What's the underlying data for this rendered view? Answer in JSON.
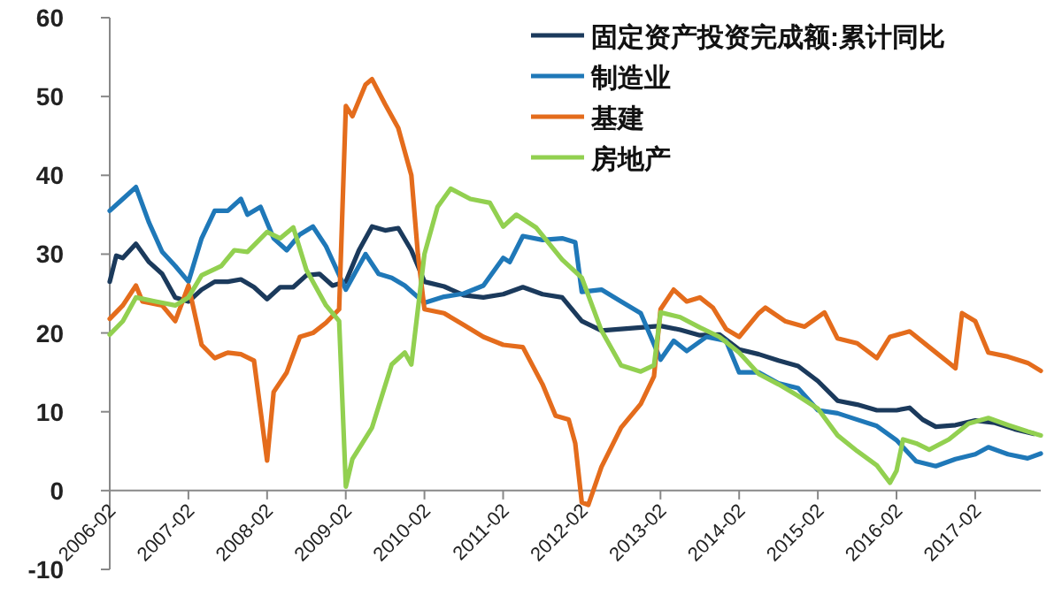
{
  "chart_data": {
    "type": "line",
    "ylim": [
      -10,
      60
    ],
    "yticks": [
      -10,
      0,
      10,
      20,
      30,
      40,
      50,
      60
    ],
    "xlim": [
      "2006-02",
      "2017-12"
    ],
    "xticks": [
      "2006-02",
      "2007-02",
      "2008-02",
      "2009-02",
      "2010-02",
      "2011-02",
      "2012-02",
      "2013-02",
      "2014-02",
      "2015-02",
      "2016-02",
      "2017-02"
    ],
    "grid": false,
    "legend": "top right",
    "marker": "none",
    "line_style": "solid",
    "series": [
      {
        "name": "固定资产投资完成额:累计同比",
        "color": "#1b3a5c",
        "x": [
          "2006-02",
          "2006-03",
          "2006-04",
          "2006-06",
          "2006-08",
          "2006-10",
          "2006-12",
          "2007-02",
          "2007-04",
          "2007-06",
          "2007-08",
          "2007-10",
          "2007-12",
          "2008-02",
          "2008-04",
          "2008-06",
          "2008-08",
          "2008-10",
          "2008-12",
          "2009-02",
          "2009-04",
          "2009-06",
          "2009-08",
          "2009-10",
          "2009-12",
          "2010-02",
          "2010-05",
          "2010-08",
          "2010-11",
          "2011-02",
          "2011-05",
          "2011-08",
          "2011-11",
          "2012-02",
          "2012-05",
          "2012-08",
          "2012-11",
          "2013-02",
          "2013-05",
          "2013-08",
          "2013-11",
          "2014-02",
          "2014-05",
          "2014-08",
          "2014-11",
          "2015-02",
          "2015-05",
          "2015-08",
          "2015-11",
          "2016-02",
          "2016-04",
          "2016-06",
          "2016-08",
          "2016-11",
          "2017-02",
          "2017-05",
          "2017-08",
          "2017-11"
        ],
        "values": [
          26.5,
          29.8,
          29.5,
          31.3,
          29,
          27.5,
          24.5,
          24,
          25.5,
          26.5,
          26.5,
          26.8,
          25.8,
          24.3,
          25.8,
          25.8,
          27.3,
          27.5,
          26,
          26.5,
          30.5,
          33.5,
          33,
          33.3,
          30.5,
          26.5,
          25.9,
          24.8,
          24.5,
          24.9,
          25.8,
          24.9,
          24.5,
          21.5,
          20.3,
          20.5,
          20.7,
          20.9,
          20.4,
          19.7,
          19.8,
          17.9,
          17.3,
          16.5,
          15.8,
          13.9,
          11.4,
          10.9,
          10.2,
          10.2,
          10.5,
          9,
          8.1,
          8.3,
          8.9,
          8.6,
          7.8,
          7.2
        ]
      },
      {
        "name": "制造业",
        "color": "#1f78b8",
        "x": [
          "2006-02",
          "2006-04",
          "2006-06",
          "2006-08",
          "2006-10",
          "2006-12",
          "2007-02",
          "2007-04",
          "2007-06",
          "2007-08",
          "2007-10",
          "2007-11",
          "2008-01",
          "2008-03",
          "2008-05",
          "2008-07",
          "2008-09",
          "2008-11",
          "2009-02",
          "2009-04",
          "2009-05",
          "2009-07",
          "2009-09",
          "2009-11",
          "2010-02",
          "2010-05",
          "2010-08",
          "2010-11",
          "2011-02",
          "2011-03",
          "2011-05",
          "2011-08",
          "2011-11",
          "2012-01",
          "2012-02",
          "2012-05",
          "2012-08",
          "2012-11",
          "2013-02",
          "2013-04",
          "2013-06",
          "2013-09",
          "2013-12",
          "2014-02",
          "2014-05",
          "2014-08",
          "2014-11",
          "2015-02",
          "2015-05",
          "2015-08",
          "2015-11",
          "2016-02",
          "2016-05",
          "2016-08",
          "2016-11",
          "2017-02",
          "2017-04",
          "2017-07",
          "2017-10",
          "2017-12"
        ],
        "values": [
          35.5,
          37,
          38.5,
          34,
          30.3,
          28.5,
          26.5,
          32,
          35.5,
          35.5,
          37,
          35,
          36,
          32,
          30.5,
          32.5,
          33.5,
          31,
          25.5,
          28.5,
          30,
          27.5,
          27,
          26,
          23.8,
          24.6,
          25,
          26,
          29.5,
          29,
          32.3,
          31.8,
          32,
          31.5,
          25.2,
          25.5,
          24,
          22.5,
          16.6,
          19,
          17.7,
          19.5,
          19,
          15,
          15,
          13.6,
          13,
          10.2,
          9.8,
          9,
          8.2,
          6.4,
          3.7,
          3.1,
          4,
          4.6,
          5.5,
          4.6,
          4.1,
          4.7
        ]
      },
      {
        "name": "基建",
        "color": "#e46c1c",
        "x": [
          "2006-02",
          "2006-04",
          "2006-06",
          "2006-07",
          "2006-10",
          "2006-12",
          "2007-02",
          "2007-04",
          "2007-06",
          "2007-08",
          "2007-10",
          "2007-12",
          "2008-02",
          "2008-03",
          "2008-05",
          "2008-07",
          "2008-09",
          "2008-11",
          "2009-01",
          "2009-02",
          "2009-03",
          "2009-05",
          "2009-06",
          "2009-08",
          "2009-10",
          "2009-12",
          "2010-01",
          "2010-02",
          "2010-05",
          "2010-08",
          "2010-11",
          "2011-02",
          "2011-05",
          "2011-08",
          "2011-10",
          "2011-12",
          "2012-01",
          "2012-02",
          "2012-03",
          "2012-05",
          "2012-08",
          "2012-11",
          "2013-01",
          "2013-02",
          "2013-04",
          "2013-06",
          "2013-08",
          "2013-10",
          "2013-12",
          "2014-02",
          "2014-05",
          "2014-06",
          "2014-09",
          "2014-12",
          "2015-03",
          "2015-05",
          "2015-08",
          "2015-11",
          "2016-01",
          "2016-04",
          "2016-07",
          "2016-10",
          "2016-11",
          "2016-12",
          "2017-02",
          "2017-04",
          "2017-07",
          "2017-10",
          "2017-12"
        ],
        "values": [
          21.8,
          23.5,
          26,
          24,
          23.5,
          21.5,
          26,
          18.5,
          16.8,
          17.5,
          17.3,
          16.5,
          3.8,
          12.5,
          15,
          19.5,
          20,
          21.3,
          23,
          48.8,
          47.5,
          51.5,
          52.2,
          49,
          46,
          40,
          30,
          23,
          22.5,
          21,
          19.5,
          18.5,
          18.2,
          13.5,
          9.5,
          9,
          6,
          -1.5,
          -1.8,
          3,
          8,
          11,
          14.5,
          23,
          25.5,
          24,
          24.5,
          23.2,
          20.5,
          19.5,
          22.5,
          23.2,
          21.5,
          20.8,
          22.6,
          19.3,
          18.7,
          16.8,
          19.5,
          20.2,
          18.2,
          16.2,
          15.5,
          22.5,
          21.5,
          17.5,
          17,
          16.2,
          15.2
        ]
      },
      {
        "name": "房地产",
        "color": "#92d050",
        "x": [
          "2006-02",
          "2006-04",
          "2006-06",
          "2006-09",
          "2006-12",
          "2007-02",
          "2007-04",
          "2007-07",
          "2007-09",
          "2007-11",
          "2008-02",
          "2008-04",
          "2008-06",
          "2008-08",
          "2008-11",
          "2009-01",
          "2009-02",
          "2009-03",
          "2009-06",
          "2009-09",
          "2009-11",
          "2009-12",
          "2010-02",
          "2010-04",
          "2010-06",
          "2010-09",
          "2010-12",
          "2011-02",
          "2011-04",
          "2011-07",
          "2011-11",
          "2012-02",
          "2012-05",
          "2012-08",
          "2012-11",
          "2013-01",
          "2013-02",
          "2013-05",
          "2013-08",
          "2013-11",
          "2014-02",
          "2014-05",
          "2014-08",
          "2014-11",
          "2015-02",
          "2015-05",
          "2015-08",
          "2015-11",
          "2016-01",
          "2016-02",
          "2016-03",
          "2016-05",
          "2016-07",
          "2016-10",
          "2017-01",
          "2017-04",
          "2017-07",
          "2017-10",
          "2017-12"
        ],
        "values": [
          19.8,
          21.5,
          24.5,
          24,
          23.5,
          24.5,
          27.3,
          28.5,
          30.5,
          30.3,
          32.8,
          32,
          33.4,
          28,
          23.5,
          21.5,
          0.5,
          4,
          8,
          16,
          17.5,
          16,
          30,
          36,
          38.3,
          37,
          36.5,
          33.5,
          35,
          33.4,
          29.3,
          27,
          20.3,
          15.9,
          15.1,
          15.9,
          22.6,
          22,
          20.7,
          19.5,
          17.5,
          14.8,
          13.5,
          12,
          10.4,
          7,
          5,
          3.2,
          1,
          2.5,
          6.5,
          6,
          5.2,
          6.5,
          8.5,
          9.2,
          8.3,
          7.5,
          7
        ]
      }
    ]
  }
}
